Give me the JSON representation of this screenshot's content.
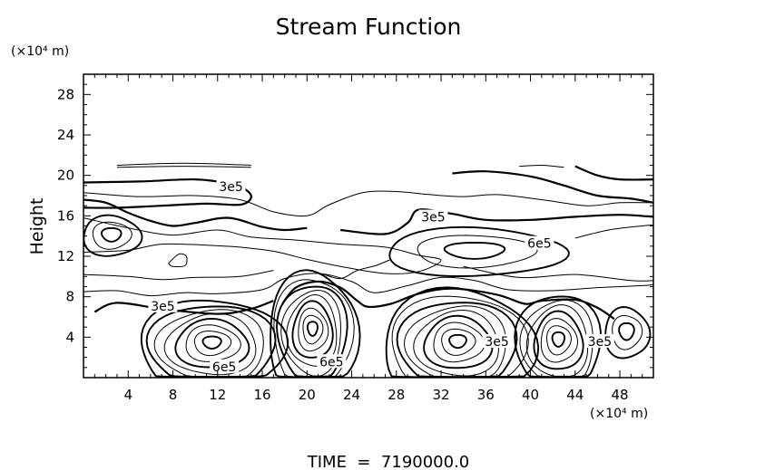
{
  "chart_data": {
    "type": "contour",
    "title": "Stream Function",
    "ylabel": "Height",
    "yunit": "(×10⁴ m)",
    "xunit": "(×10⁴ m)",
    "footer": "TIME  =  7190000.0",
    "xlim": [
      0,
      51
    ],
    "ylim": [
      0,
      30
    ],
    "x_ticks": [
      4,
      8,
      12,
      16,
      20,
      24,
      28,
      32,
      36,
      40,
      44,
      48
    ],
    "y_ticks": [
      4,
      8,
      12,
      16,
      20,
      24,
      28
    ],
    "contour_labels": [
      {
        "text": "3e5",
        "x": 13.2,
        "y": 18.8
      },
      {
        "text": "3e5",
        "x": 31.3,
        "y": 15.8
      },
      {
        "text": "6e5",
        "x": 40.8,
        "y": 13.2
      },
      {
        "text": "3e5",
        "x": 7.1,
        "y": 7.0
      },
      {
        "text": "6e5",
        "x": 12.6,
        "y": 1.0
      },
      {
        "text": "6e5",
        "x": 22.2,
        "y": 1.5
      },
      {
        "text": "3e5",
        "x": 37.0,
        "y": 3.5
      },
      {
        "text": "3e5",
        "x": 46.2,
        "y": 3.5
      }
    ],
    "vortices": [
      {
        "cx": 11.5,
        "cy": 3.0,
        "rx": 6.5,
        "ry": 4.8,
        "levels": 8
      },
      {
        "cx": 20.5,
        "cy": 4.2,
        "rx": 4.0,
        "ry": 6.3,
        "levels": 9
      },
      {
        "cx": 33.5,
        "cy": 3.0,
        "rx": 6.8,
        "ry": 5.8,
        "levels": 9
      },
      {
        "cx": 42.5,
        "cy": 3.3,
        "rx": 3.8,
        "ry": 5.0,
        "levels": 7
      },
      {
        "cx": 48.6,
        "cy": 4.4,
        "rx": 2.0,
        "ry": 2.5,
        "levels": 3
      },
      {
        "cx": 2.5,
        "cy": 14.0,
        "rx": 2.6,
        "ry": 2.0,
        "levels": 3
      },
      {
        "cx": 35.0,
        "cy": 12.4,
        "rx": 8.0,
        "ry": 2.4,
        "levels": 3
      }
    ],
    "bold_levels": [
      [
        [
          0,
          19.3
        ],
        [
          5,
          19.4
        ],
        [
          10,
          19.6
        ],
        [
          13,
          19.2
        ],
        [
          14.5,
          18.6
        ],
        [
          15,
          17.8
        ],
        [
          14,
          17.1
        ],
        [
          11,
          17.2
        ],
        [
          7,
          17.0
        ],
        [
          3,
          16.8
        ],
        [
          0,
          16.8
        ]
      ],
      [
        [
          0,
          17.6
        ],
        [
          2,
          17.3
        ],
        [
          4,
          16.3
        ],
        [
          6,
          15.5
        ],
        [
          8,
          15.0
        ],
        [
          10,
          15.3
        ],
        [
          13,
          15.8
        ],
        [
          16,
          14.9
        ],
        [
          18,
          14.6
        ],
        [
          20,
          14.8
        ]
      ],
      [
        [
          23,
          14.6
        ],
        [
          27,
          14.2
        ],
        [
          29,
          15.3
        ],
        [
          30,
          16.6
        ],
        [
          33,
          16.2
        ],
        [
          36,
          15.6
        ],
        [
          40,
          15.6
        ],
        [
          44,
          15.9
        ],
        [
          48,
          16.1
        ],
        [
          51,
          15.9
        ]
      ],
      [
        [
          51,
          17.3
        ],
        [
          49,
          17.7
        ],
        [
          46,
          18.0
        ],
        [
          43,
          19.0
        ],
        [
          40,
          19.9
        ],
        [
          36,
          20.4
        ],
        [
          33,
          20.2
        ]
      ],
      [
        [
          51,
          19.6
        ],
        [
          48,
          19.6
        ],
        [
          46,
          20.0
        ],
        [
          44,
          20.9
        ]
      ],
      [
        [
          1,
          6.5
        ],
        [
          3,
          7.4
        ],
        [
          7,
          6.8
        ],
        [
          12,
          6.3
        ],
        [
          15,
          6.8
        ],
        [
          17,
          7.6
        ]
      ],
      [
        [
          17.8,
          7.3
        ],
        [
          19,
          8.9
        ],
        [
          21,
          9.5
        ],
        [
          23,
          8.9
        ],
        [
          24.5,
          7.6
        ],
        [
          25.5,
          7.0
        ],
        [
          27.5,
          7.3
        ],
        [
          30,
          8.3
        ],
        [
          33,
          8.8
        ],
        [
          37,
          8.2
        ],
        [
          39.5,
          7.3
        ],
        [
          41,
          7.6
        ],
        [
          44,
          7.7
        ],
        [
          46,
          6.9
        ],
        [
          47.5,
          5.8
        ]
      ]
    ],
    "thin_levels": [
      [
        [
          3,
          21.0
        ],
        [
          9,
          21.2
        ],
        [
          15,
          21.0
        ]
      ],
      [
        [
          3,
          20.8
        ],
        [
          9,
          20.9
        ],
        [
          15,
          20.8
        ]
      ],
      [
        [
          39,
          20.9
        ],
        [
          41,
          21.0
        ],
        [
          43,
          20.8
        ]
      ],
      [
        [
          0,
          18.3
        ],
        [
          5,
          17.9
        ],
        [
          10,
          18.0
        ],
        [
          14,
          17.6
        ],
        [
          17,
          16.4
        ],
        [
          20,
          16.0
        ],
        [
          22,
          17.1
        ],
        [
          25,
          18.3
        ],
        [
          28,
          18.4
        ],
        [
          31,
          18.1
        ],
        [
          34,
          17.9
        ],
        [
          37,
          18.1
        ],
        [
          41,
          17.6
        ],
        [
          45,
          17.0
        ],
        [
          48,
          17.3
        ],
        [
          51,
          17.3
        ]
      ],
      [
        [
          0,
          15.8
        ],
        [
          4,
          14.8
        ],
        [
          8,
          14.1
        ],
        [
          12,
          14.6
        ],
        [
          15,
          13.9
        ],
        [
          19,
          13.6
        ],
        [
          23,
          13.2
        ],
        [
          27,
          12.9
        ],
        [
          30,
          12.1
        ],
        [
          32,
          11.6
        ],
        [
          30,
          10.5
        ],
        [
          27,
          10.3
        ],
        [
          23,
          11.0
        ],
        [
          20,
          11.7
        ],
        [
          17,
          12.5
        ],
        [
          14,
          12.9
        ],
        [
          11,
          13.1
        ],
        [
          7,
          13.2
        ],
        [
          4,
          12.6
        ],
        [
          0,
          12.4
        ]
      ],
      [
        [
          21.3,
          10.3
        ],
        [
          23,
          9.8
        ],
        [
          24.5,
          10.6
        ],
        [
          26.2,
          11.1
        ],
        [
          27.5,
          11.7
        ]
      ],
      [
        [
          34,
          11.0
        ],
        [
          39,
          9.9
        ],
        [
          44,
          10.2
        ],
        [
          49,
          9.6
        ],
        [
          51,
          9.6
        ]
      ],
      [
        [
          44,
          13.8
        ],
        [
          47,
          14.6
        ],
        [
          50,
          15.0
        ],
        [
          51,
          15.1
        ]
      ],
      [
        [
          7.6,
          11.3
        ],
        [
          8.5,
          12.2
        ],
        [
          9.2,
          12.0
        ],
        [
          9.1,
          11.1
        ],
        [
          8.0,
          11.0
        ],
        [
          7.6,
          11.3
        ]
      ],
      [
        [
          0,
          8.5
        ],
        [
          3,
          8.6
        ],
        [
          6,
          8.1
        ],
        [
          9,
          8.4
        ],
        [
          12,
          8.3
        ],
        [
          16,
          8.7
        ],
        [
          18,
          9.8
        ],
        [
          21,
          10.3
        ],
        [
          24,
          9.5
        ],
        [
          26,
          8.4
        ],
        [
          29,
          9.1
        ],
        [
          32,
          9.9
        ],
        [
          35,
          9.6
        ],
        [
          38,
          8.7
        ],
        [
          42,
          8.6
        ],
        [
          46,
          8.9
        ],
        [
          50,
          9.1
        ],
        [
          51,
          9.2
        ]
      ],
      [
        [
          0,
          10.2
        ],
        [
          4,
          10.0
        ],
        [
          7,
          9.7
        ],
        [
          10,
          9.9
        ],
        [
          14,
          10.0
        ],
        [
          17,
          10.6
        ]
      ]
    ]
  }
}
